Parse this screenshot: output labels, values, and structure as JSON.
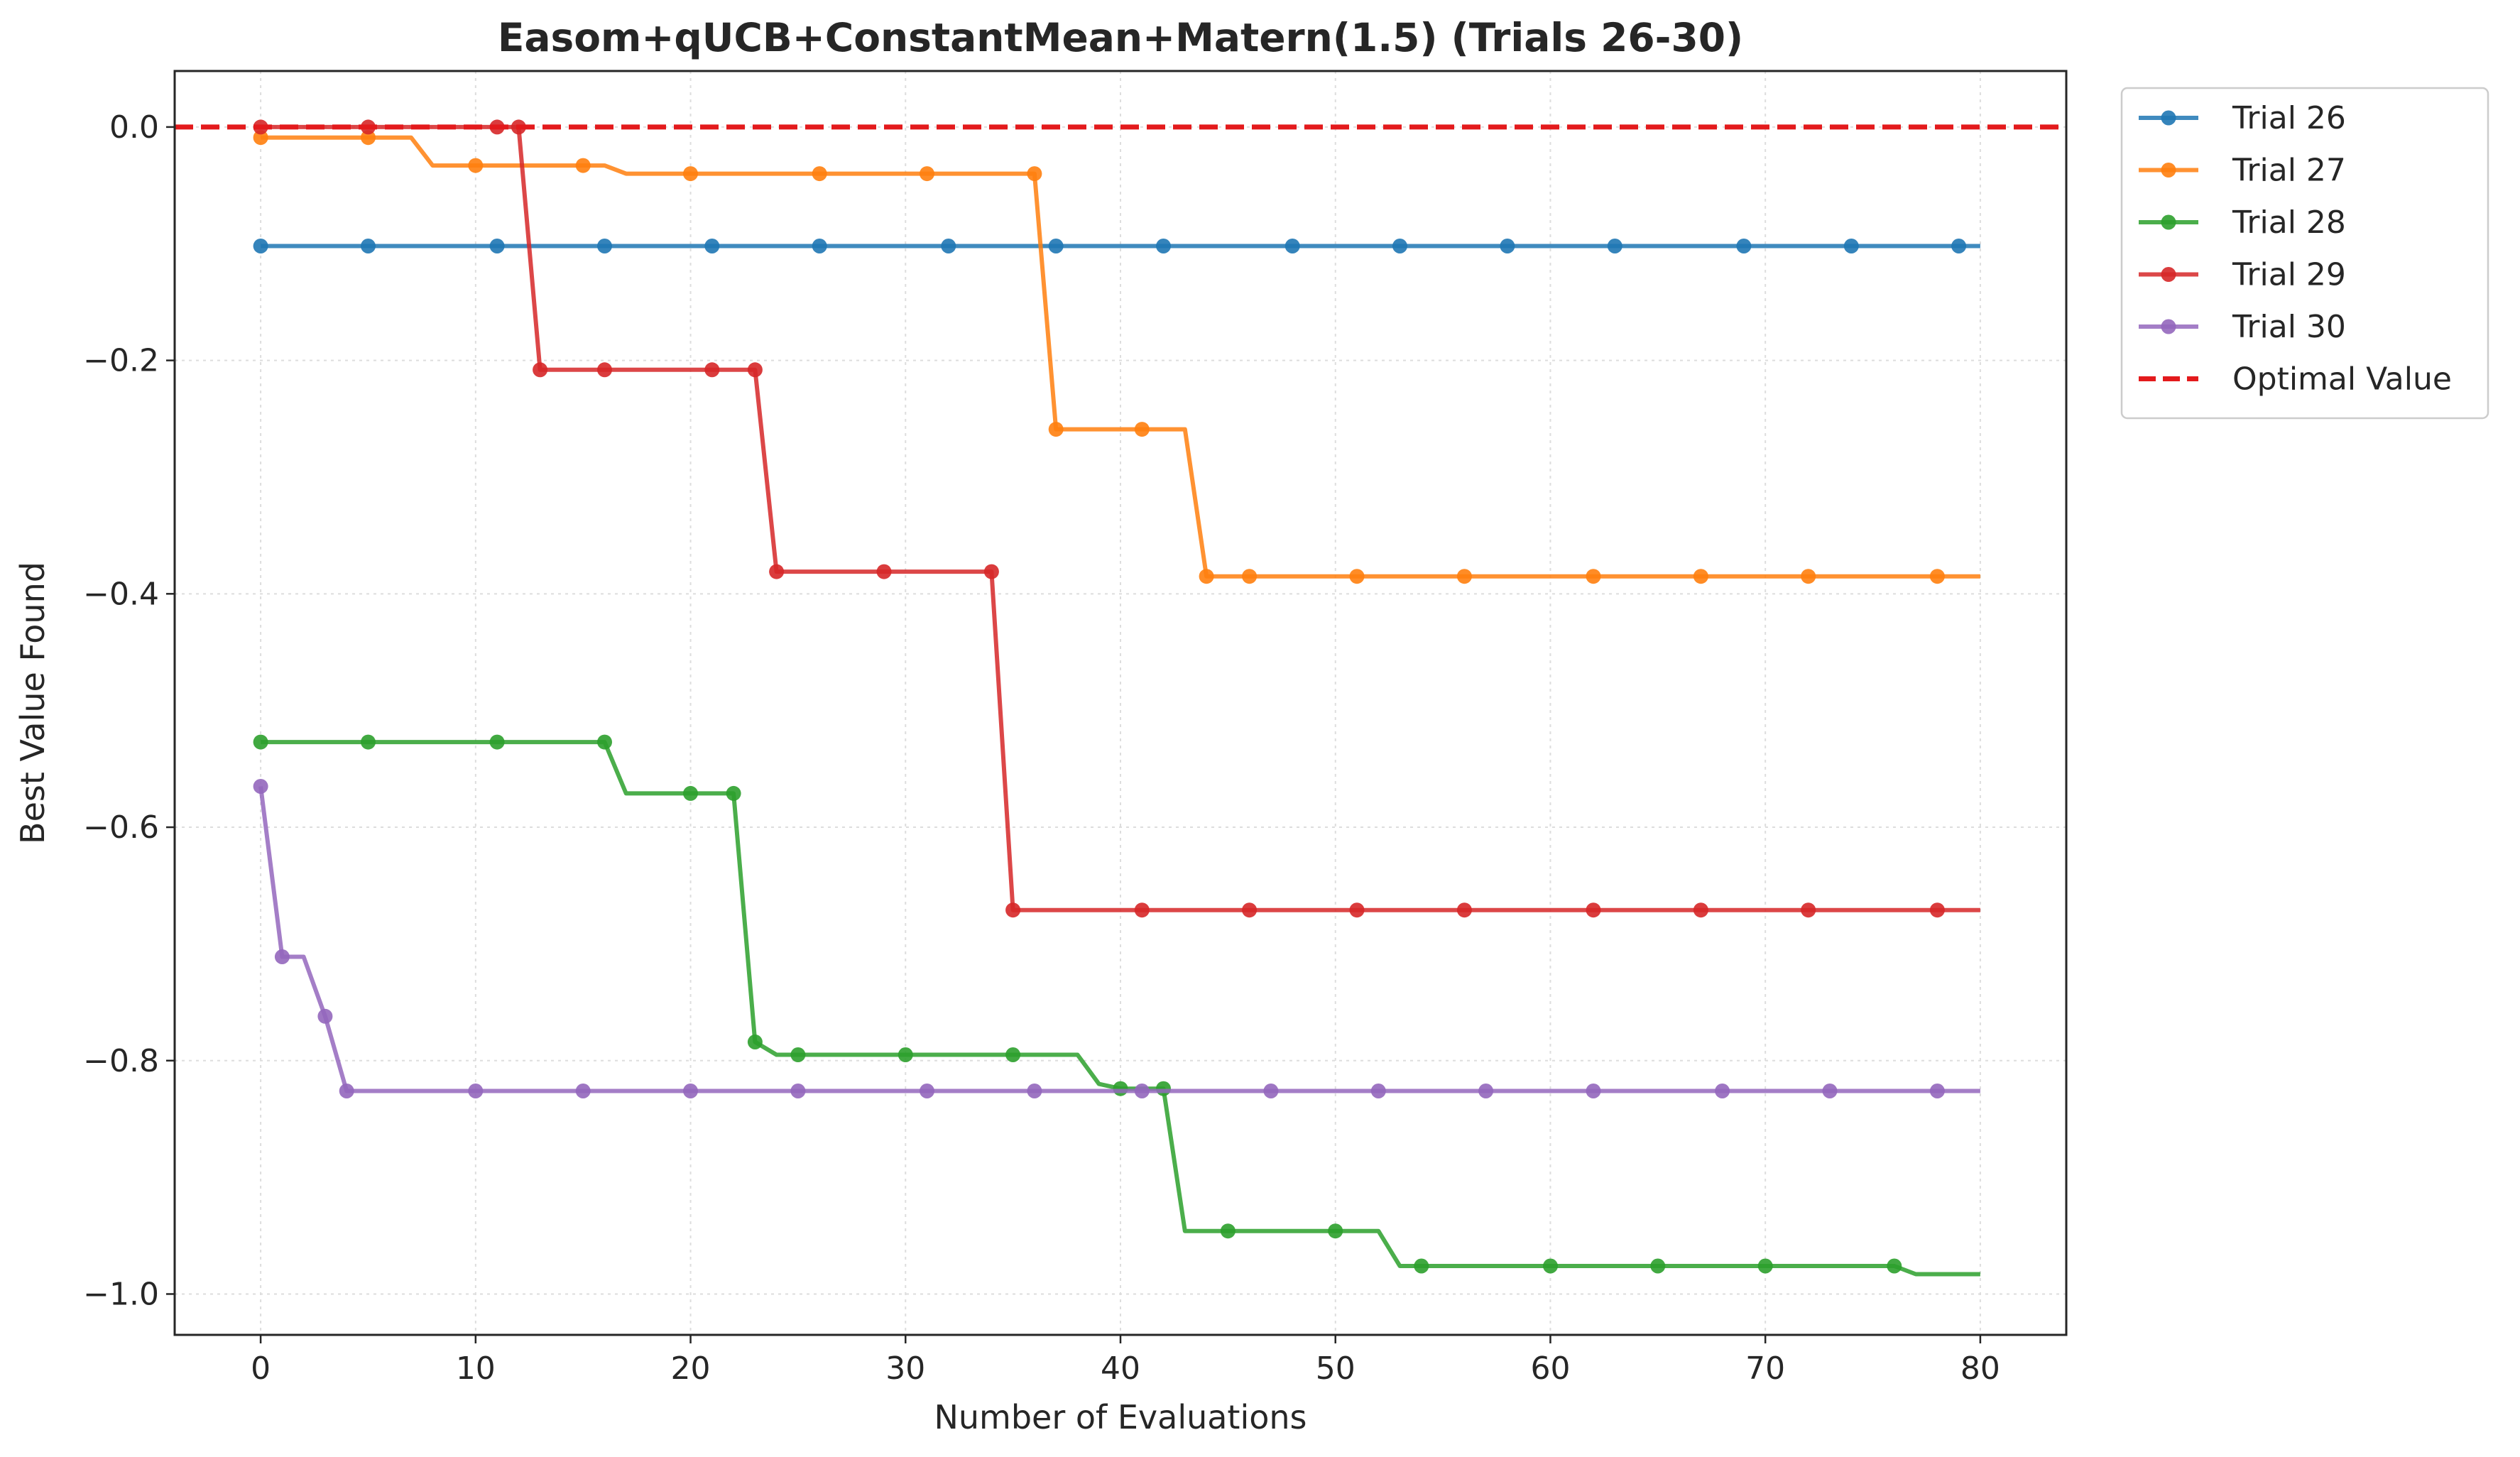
{
  "chart_data": {
    "type": "line",
    "title": "Easom+qUCB+ConstantMean+Matern(1.5) (Trials 26-30)",
    "xlabel": "Number of Evaluations",
    "ylabel": "Best Value Found",
    "xlim": [
      -4,
      84
    ],
    "ylim": [
      -1.035,
      0.048
    ],
    "xticks": [
      0,
      10,
      20,
      30,
      40,
      50,
      60,
      70,
      80
    ],
    "xtick_labels": [
      "0",
      "10",
      "20",
      "30",
      "40",
      "50",
      "60",
      "70",
      "80"
    ],
    "yticks": [
      0.0,
      -0.2,
      -0.4,
      -0.6,
      -0.8,
      -1.0
    ],
    "ytick_labels": [
      "0.0",
      "−0.2",
      "−0.4",
      "−0.6",
      "−0.8",
      "−1.0"
    ],
    "grid": true,
    "legend_position": "outside-top-right",
    "series": [
      {
        "name": "Trial 26",
        "color": "#1f77b4",
        "x": [
          0,
          80
        ],
        "y": [
          -0.102,
          -0.102
        ],
        "markers_x": [
          0,
          5,
          11,
          16,
          21,
          26,
          32,
          37,
          42,
          48,
          53,
          58,
          63,
          69,
          74,
          79
        ]
      },
      {
        "name": "Trial 27",
        "color": "#ff7f0e",
        "x": [
          0,
          7,
          8,
          16,
          17,
          36,
          37,
          43,
          44,
          80
        ],
        "y": [
          -0.009,
          -0.009,
          -0.033,
          -0.033,
          -0.04,
          -0.04,
          -0.259,
          -0.259,
          -0.385,
          -0.385
        ],
        "markers_x": [
          0,
          5,
          10,
          15,
          20,
          26,
          31,
          36,
          37,
          41,
          44,
          46,
          51,
          56,
          62,
          67,
          72,
          78
        ]
      },
      {
        "name": "Trial 28",
        "color": "#2ca02c",
        "x": [
          0,
          16,
          17,
          22,
          23,
          24,
          38,
          39,
          40,
          42,
          43,
          52,
          53,
          76,
          77,
          80
        ],
        "y": [
          -0.527,
          -0.527,
          -0.571,
          -0.571,
          -0.784,
          -0.795,
          -0.795,
          -0.82,
          -0.824,
          -0.824,
          -0.946,
          -0.946,
          -0.976,
          -0.976,
          -0.983,
          -0.983
        ],
        "markers_x": [
          0,
          5,
          11,
          16,
          20,
          22,
          23,
          25,
          30,
          35,
          40,
          42,
          45,
          50,
          54,
          60,
          65,
          70,
          76
        ]
      },
      {
        "name": "Trial 29",
        "color": "#d62728",
        "x": [
          0,
          12,
          13,
          23,
          24,
          34,
          35,
          80
        ],
        "y": [
          0.0,
          0.0,
          -0.208,
          -0.208,
          -0.381,
          -0.381,
          -0.671,
          -0.671
        ],
        "markers_x": [
          0,
          5,
          11,
          12,
          13,
          16,
          21,
          23,
          24,
          29,
          34,
          35,
          41,
          46,
          51,
          56,
          62,
          67,
          72,
          78
        ]
      },
      {
        "name": "Trial 30",
        "color": "#9467bd",
        "x": [
          0,
          1,
          2,
          3,
          4,
          80
        ],
        "y": [
          -0.565,
          -0.711,
          -0.711,
          -0.762,
          -0.826,
          -0.826
        ],
        "markers_x": [
          0,
          1,
          3,
          4,
          10,
          15,
          20,
          25,
          31,
          36,
          41,
          47,
          52,
          57,
          62,
          68,
          73,
          78
        ]
      }
    ],
    "reference_line": {
      "name": "Optimal Value",
      "y": 0.0,
      "color": "#e31a1c",
      "style": "dashed"
    }
  }
}
